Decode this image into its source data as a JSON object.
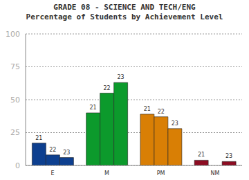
{
  "chart_data": {
    "type": "bar",
    "title": "GRADE 08 - SCIENCE AND TECH/ENG",
    "subtitle": "Percentage of Students by Achievement Level",
    "categories": [
      "E",
      "M",
      "PM",
      "NM"
    ],
    "series": [
      {
        "name": "21",
        "values": [
          17,
          40,
          39,
          4
        ]
      },
      {
        "name": "22",
        "values": [
          8,
          55,
          37,
          0
        ]
      },
      {
        "name": "23",
        "values": [
          6,
          63,
          28,
          3
        ]
      }
    ],
    "colors": [
      "#0d3f8f",
      "#0c9a2c",
      "#d97f05",
      "#8c0c22"
    ],
    "ylim": [
      0,
      100
    ],
    "yticks": [
      0,
      25,
      50,
      75,
      100
    ],
    "grid": true
  }
}
